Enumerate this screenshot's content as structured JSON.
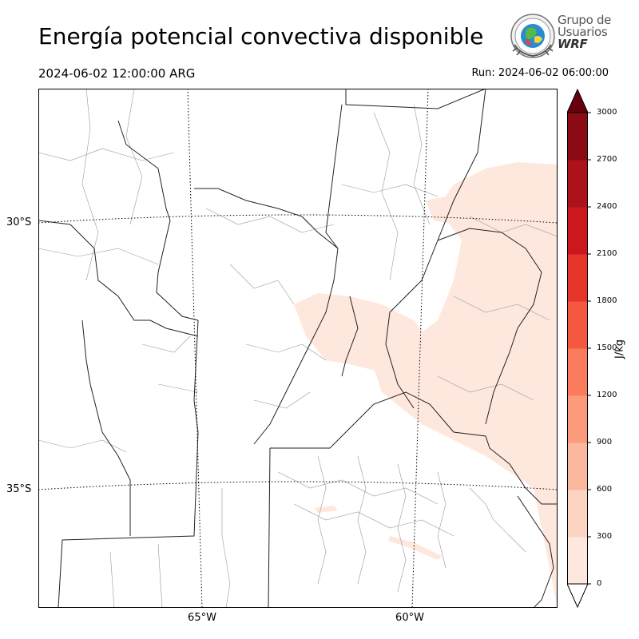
{
  "header": {
    "title": "Energía potencial convectiva disponible",
    "valid_time": "2024-06-02 12:00:00 ARG",
    "run_time": "Run: 2024-06-02 06:00:00"
  },
  "logo": {
    "line1": "Grupo de",
    "line2": "Usuarios",
    "line3": "WRF"
  },
  "map": {
    "lat_labels": [
      "30°S",
      "35°S"
    ],
    "lon_labels": [
      "65°W",
      "60°W"
    ]
  },
  "colorbar": {
    "label": "J/kg",
    "ticks": [
      "0",
      "300",
      "600",
      "900",
      "1200",
      "1500",
      "1800",
      "2100",
      "2400",
      "2700",
      "3000"
    ],
    "colors": [
      "#fee8de",
      "#fdd3c1",
      "#fcb89e",
      "#fc9b7c",
      "#fb7c5c",
      "#f4583e",
      "#e53529",
      "#cc181d",
      "#ac1219",
      "#8b0a14",
      "#67000d"
    ],
    "extend": "both"
  }
}
